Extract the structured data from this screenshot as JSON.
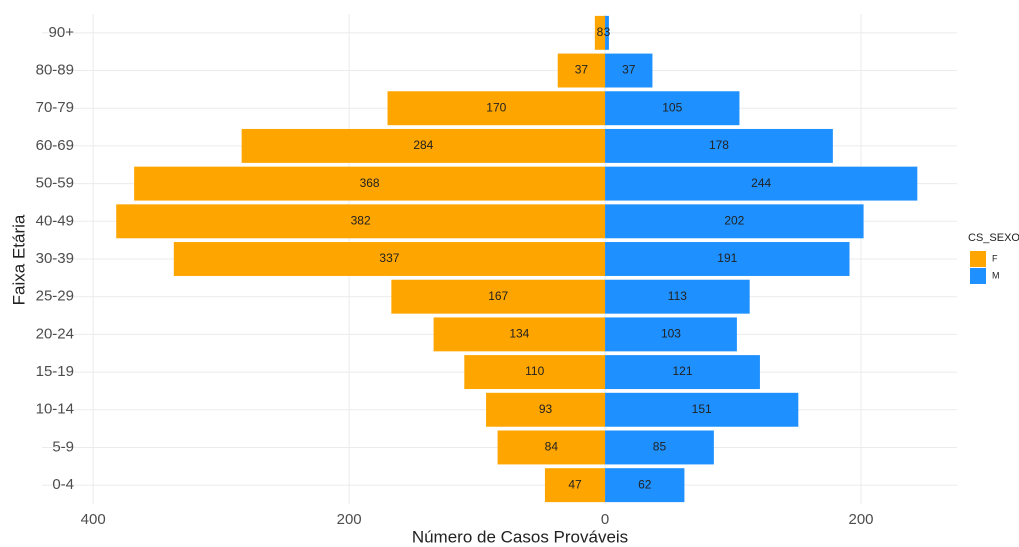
{
  "chart_data": {
    "type": "pyramid",
    "xlabel": "Número de Casos Prováveis",
    "ylabel": "Faixa Etária",
    "categories": [
      "0-4",
      "5-9",
      "10-14",
      "15-19",
      "20-24",
      "25-29",
      "30-39",
      "40-49",
      "50-59",
      "60-69",
      "70-79",
      "80-89",
      "90+"
    ],
    "series": [
      {
        "name": "F",
        "color": "#ffa500",
        "values": [
          -47,
          -84,
          -93,
          -110,
          -134,
          -167,
          -337,
          -382,
          -368,
          -284,
          -170,
          -37,
          -8
        ],
        "value_labels": [
          "47",
          "84",
          "93",
          "110",
          "134",
          "167",
          "337",
          "382",
          "368",
          "284",
          "170",
          "37",
          "8"
        ]
      },
      {
        "name": "M",
        "color": "#1e90ff",
        "values": [
          62,
          85,
          151,
          121,
          103,
          113,
          191,
          202,
          244,
          178,
          105,
          37,
          3
        ]
      }
    ],
    "xlim": [
      -440,
      275
    ],
    "xticks": [
      {
        "value": -400,
        "label": "400"
      },
      {
        "value": -200,
        "label": "200"
      },
      0,
      200
    ],
    "grid": true,
    "legend_title": "CS_SEXO",
    "legend": "right"
  }
}
